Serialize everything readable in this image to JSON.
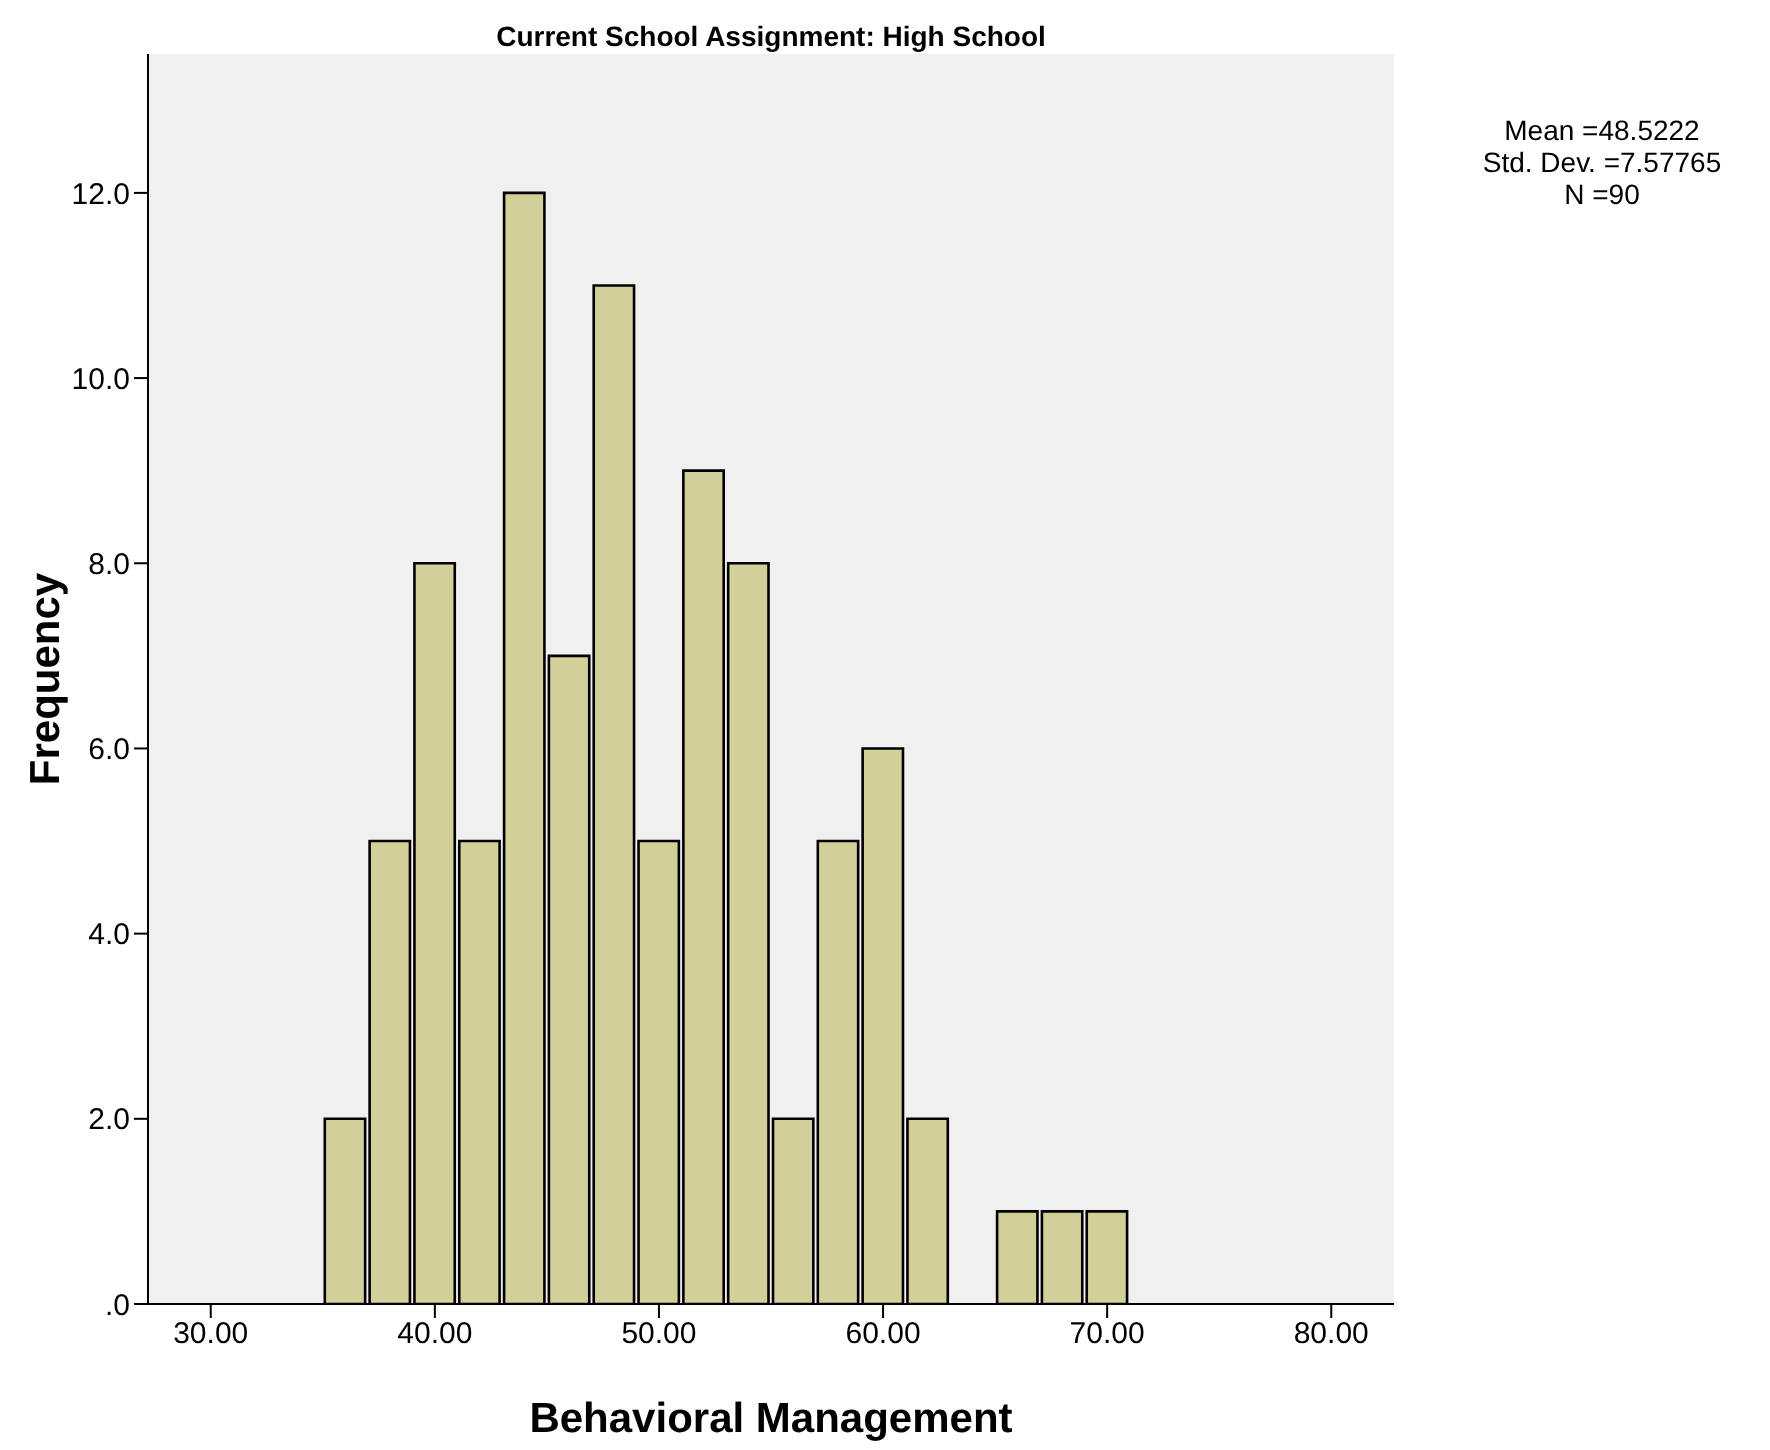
{
  "chart_data": {
    "type": "histogram",
    "title": "Current School Assignment: High School",
    "xlabel": "Behavioral Management",
    "ylabel": "Frequency",
    "annotations": [
      "Mean =48.5222\nStd. Dev. =7.57765\nN =90"
    ],
    "bins": [
      35,
      37,
      39,
      41,
      43,
      45,
      47,
      49,
      51,
      53,
      55,
      57,
      59,
      61,
      63,
      65,
      67,
      69,
      71
    ],
    "values": [
      2,
      5,
      8,
      5,
      12,
      7,
      11,
      5,
      9,
      8,
      2,
      5,
      6,
      2,
      0,
      1,
      1,
      1
    ],
    "color": "#d3cf98",
    "xlim": [
      27.2,
      82.8
    ],
    "xticks": [
      {
        "value": 30,
        "label": "30.00"
      },
      {
        "value": 40,
        "label": "40.00"
      },
      {
        "value": 50,
        "label": "50.00"
      },
      {
        "value": 60,
        "label": "60.00"
      },
      {
        "value": 70,
        "label": "70.00"
      },
      {
        "value": 80,
        "label": "80.00"
      }
    ],
    "ylim": [
      0,
      13.5
    ],
    "yticks": [
      {
        "value": 0,
        "label": ".0"
      },
      {
        "value": 2,
        "label": "2.0"
      },
      {
        "value": 4,
        "label": "4.0"
      },
      {
        "value": 6,
        "label": "6.0"
      },
      {
        "value": 8,
        "label": "8.0"
      },
      {
        "value": 10,
        "label": "10.0"
      },
      {
        "value": 12,
        "label": "12.0"
      }
    ],
    "grid": false
  }
}
